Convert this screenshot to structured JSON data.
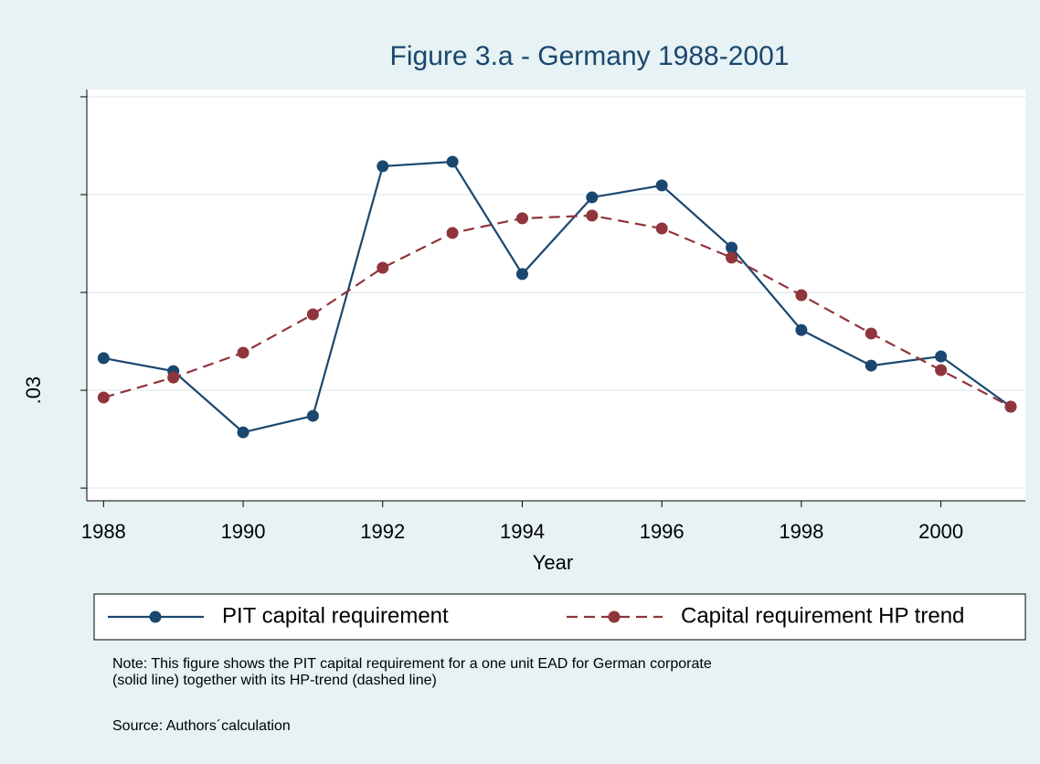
{
  "chart_data": {
    "type": "line",
    "title": "Figure 3.a - Germany 1988-2001",
    "x_label": "Year",
    "x": [
      1988,
      1989,
      1990,
      1991,
      1992,
      1993,
      1994,
      1995,
      1996,
      1997,
      1998,
      1999,
      2000,
      2001
    ],
    "series": [
      {
        "name": "PIT capital requirement",
        "color": "#1a476f",
        "dash": false,
        "values": [
          0.03164,
          0.03098,
          0.02785,
          0.02869,
          0.04145,
          0.04168,
          0.03594,
          0.03986,
          0.04047,
          0.03729,
          0.03308,
          0.03126,
          0.03173,
          0.02916
        ]
      },
      {
        "name": "Capital requirement HP trend",
        "color": "#90353b",
        "dash": true,
        "values": [
          0.02963,
          0.03065,
          0.03192,
          0.03388,
          0.03626,
          0.03804,
          0.03879,
          0.03893,
          0.03827,
          0.03678,
          0.03486,
          0.0329,
          0.03103,
          0.02916
        ]
      }
    ],
    "xlim": [
      1987.76,
      2001.21
    ],
    "xticks": [
      1988,
      1990,
      1992,
      1994,
      1996,
      1998,
      2000
    ],
    "ylim": [
      0.02435,
      0.04537
    ],
    "yticks": [
      {
        "value": 0.025,
        "label": null
      },
      {
        "value": 0.03,
        "label": ".03"
      },
      {
        "value": 0.035,
        "label": null
      },
      {
        "value": 0.04,
        "label": null
      },
      {
        "value": 0.045,
        "label": null
      }
    ],
    "grid": true,
    "notes": [
      "Note: This figure shows the PIT capital requirement for a one unit EAD for German corporate",
      "(solid line) together with its HP-trend (dashed line)",
      "Source:  Authors´calculation"
    ]
  }
}
